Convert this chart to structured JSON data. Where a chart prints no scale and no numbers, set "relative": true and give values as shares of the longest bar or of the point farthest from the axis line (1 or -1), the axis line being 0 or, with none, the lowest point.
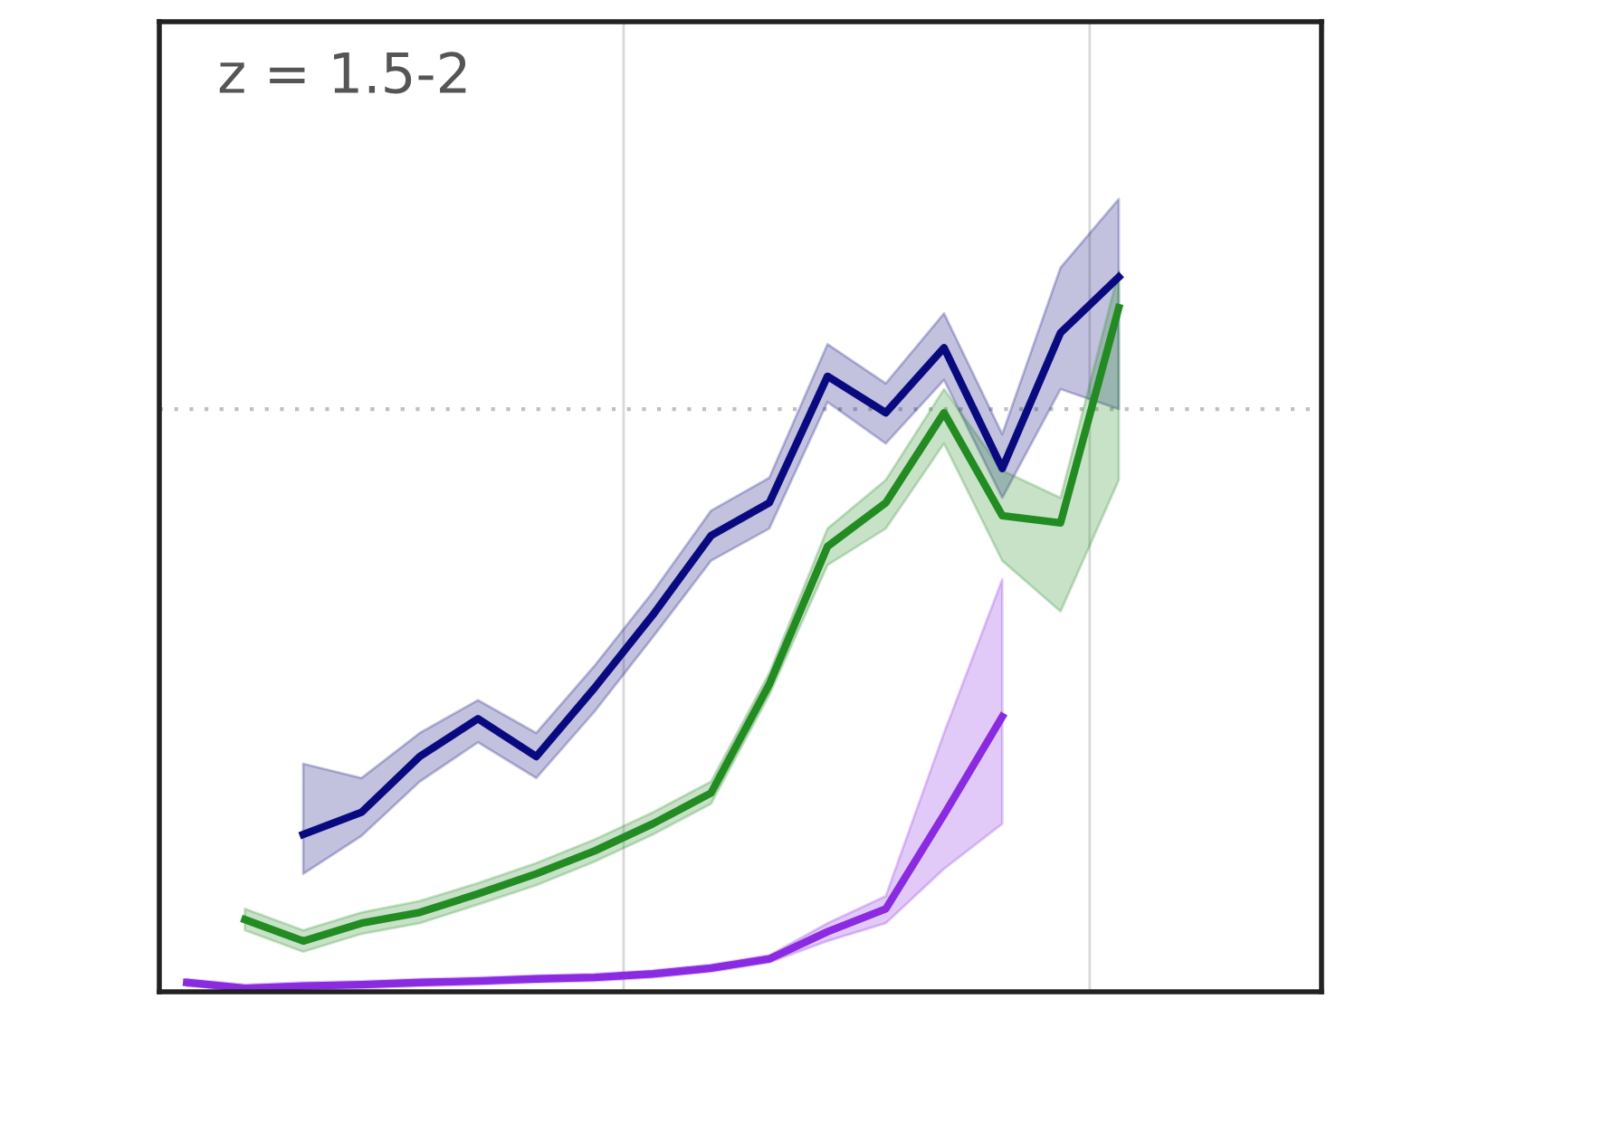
{
  "chart_data": {
    "type": "line",
    "title": "z = 1.5-2",
    "relative": true,
    "categories": [
      null,
      null,
      null,
      null,
      null,
      null,
      null,
      null,
      null,
      null,
      null,
      null,
      null,
      null,
      null,
      null,
      null
    ],
    "series": [
      {
        "color": "#0a0a80",
        "values": [
          null,
          null,
          0.22,
          0.251,
          0.329,
          0.382,
          0.329,
          0.425,
          0.527,
          0.638,
          0.684,
          0.861,
          0.81,
          0.901,
          0.732,
          0.922,
          1.0
        ],
        "upper": [
          null,
          null,
          0.319,
          0.299,
          0.362,
          0.408,
          0.362,
          0.456,
          0.559,
          0.673,
          0.719,
          0.906,
          0.851,
          0.949,
          0.78,
          1.013,
          1.109
        ],
        "lower": [
          null,
          null,
          0.165,
          0.218,
          0.294,
          0.349,
          0.299,
          0.392,
          0.496,
          0.603,
          0.648,
          0.825,
          0.767,
          0.856,
          0.691,
          0.843,
          0.815
        ]
      },
      {
        "color": "#228b22",
        "values": [
          null,
          0.101,
          0.071,
          0.096,
          0.111,
          0.137,
          0.165,
          0.197,
          0.235,
          0.278,
          0.43,
          0.623,
          0.684,
          0.81,
          0.666,
          0.656,
          0.957
        ],
        "upper": [
          null,
          0.116,
          0.086,
          0.111,
          0.127,
          0.152,
          0.18,
          0.213,
          0.251,
          0.294,
          0.446,
          0.648,
          0.716,
          0.843,
          0.729,
          0.691,
          1.008
        ],
        "lower": [
          null,
          0.086,
          0.056,
          0.081,
          0.096,
          0.122,
          0.149,
          0.182,
          0.22,
          0.263,
          0.415,
          0.597,
          0.648,
          0.767,
          0.603,
          0.532,
          0.716
        ]
      },
      {
        "color": "#8a2be2",
        "values": [
          0.013,
          0.005,
          0.008,
          0.01,
          0.013,
          0.015,
          0.018,
          0.02,
          0.025,
          0.033,
          0.046,
          0.084,
          0.116,
          0.248,
          0.385,
          null,
          null
        ],
        "upper": [
          0.018,
          0.01,
          0.013,
          0.015,
          0.018,
          0.02,
          0.023,
          0.025,
          0.03,
          0.038,
          0.051,
          0.096,
          0.134,
          0.362,
          0.577,
          null,
          null
        ],
        "lower": [
          0.008,
          0.003,
          0.005,
          0.005,
          0.008,
          0.01,
          0.013,
          0.015,
          0.02,
          0.028,
          0.041,
          0.071,
          0.096,
          0.172,
          0.235,
          null,
          null
        ]
      }
    ],
    "ref_lines": [
      {
        "axis": "y",
        "value": 0.815,
        "color": "#c0c0c0",
        "line_style": "dotted"
      }
    ]
  }
}
